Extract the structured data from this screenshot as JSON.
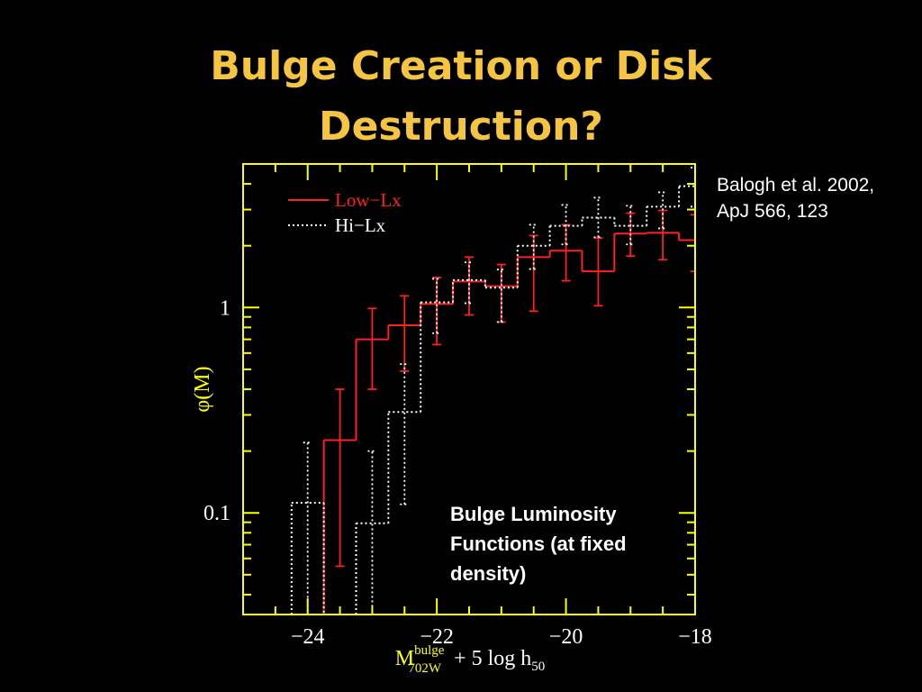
{
  "chart_data": {
    "type": "histogram",
    "title": [
      "Bulge Creation or Disk",
      "Destruction?"
    ],
    "citation": [
      "Balogh et al. 2002,",
      "ApJ 566, 123"
    ],
    "annotation": [
      "Bulge Luminosity",
      "Functions (at fixed",
      "density)"
    ],
    "xlabel": {
      "base": "M",
      "sup": "bulge",
      "sub": "702W",
      "rest": "+ 5 log h",
      "rest_sub": "50"
    },
    "ylabel": "φ(M)",
    "log_y": true,
    "xlim": [
      -25,
      -18
    ],
    "ylim": [
      0.032,
      5
    ],
    "xticks": [
      {
        "value": -24,
        "label": "−24"
      },
      {
        "value": -22,
        "label": "−22"
      },
      {
        "value": -20,
        "label": "−20"
      },
      {
        "value": -18,
        "label": "−18"
      }
    ],
    "xticks_minor": [
      -24.5,
      -23.5,
      -23,
      -22.5,
      -21.5,
      -21,
      -20.5,
      -19.5,
      -19,
      -18.5
    ],
    "yticks": [
      0.1,
      1
    ],
    "yticks_minor": [
      0.04,
      0.05,
      0.06,
      0.07,
      0.08,
      0.09,
      0.2,
      0.3,
      0.4,
      0.5,
      0.6,
      0.7,
      0.8,
      0.9,
      2,
      3,
      4
    ],
    "bins": [
      -24.25,
      -23.75,
      -23.25,
      -22.75,
      -22.25,
      -21.75,
      -21.25,
      -20.75,
      -20.25,
      -19.75,
      -19.25,
      -18.75,
      -18.25,
      -17.75
    ],
    "series": [
      {
        "name": "Low−Lx",
        "color": "#ff2020",
        "dotted": false,
        "values": [
          null,
          0.226,
          0.7,
          0.82,
          1.04,
          1.34,
          1.27,
          1.76,
          1.89,
          1.5,
          2.29,
          2.31,
          2.13
        ],
        "lower": [
          null,
          0.055,
          0.4,
          0.49,
          0.66,
          0.92,
          0.85,
          0.96,
          1.35,
          1.02,
          1.78,
          1.71,
          1.5
        ],
        "upper": [
          null,
          0.4,
          0.99,
          1.14,
          1.4,
          1.76,
          1.62,
          2.24,
          2.53,
          2.18,
          2.88,
          2.97,
          2.83
        ]
      },
      {
        "name": "Hi−Lx",
        "color": "#ffffff",
        "dotted": true,
        "values": [
          0.112,
          null,
          0.089,
          0.31,
          1.06,
          1.36,
          1.25,
          2.0,
          2.5,
          2.74,
          2.5,
          3.1,
          3.9
        ],
        "lower": [
          0.03,
          null,
          0.03,
          0.11,
          0.75,
          1.05,
          0.85,
          1.54,
          2.03,
          2.2,
          2.03,
          2.43,
          3.1
        ],
        "upper": [
          0.22,
          null,
          0.2,
          0.53,
          1.38,
          1.66,
          1.53,
          2.53,
          3.16,
          3.43,
          3.13,
          3.64,
          4.8
        ]
      }
    ],
    "axis_color": "#ffff00",
    "title_color": "#f5c542"
  }
}
